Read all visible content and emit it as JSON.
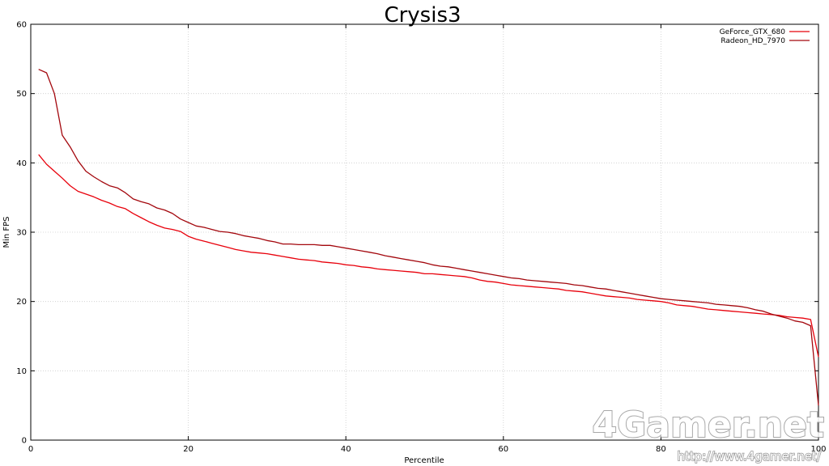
{
  "chart_data": {
    "type": "line",
    "title": "Crysis3",
    "xlabel": "Percentile",
    "ylabel": "Min FPS",
    "xlim": [
      0,
      100
    ],
    "ylim": [
      0,
      60
    ],
    "xticks": [
      0,
      20,
      40,
      60,
      80,
      100
    ],
    "yticks": [
      0,
      10,
      20,
      30,
      40,
      50,
      60
    ],
    "grid": true,
    "legend_position": "top-right",
    "series": [
      {
        "name": "GeForce_GTX_680",
        "color": "#e8000b",
        "x": [
          1,
          2,
          3,
          4,
          5,
          6,
          7,
          8,
          9,
          10,
          11,
          12,
          13,
          14,
          15,
          16,
          17,
          18,
          19,
          20,
          21,
          22,
          23,
          24,
          25,
          26,
          27,
          28,
          29,
          30,
          31,
          32,
          33,
          34,
          35,
          36,
          37,
          38,
          39,
          40,
          41,
          42,
          43,
          44,
          45,
          46,
          47,
          48,
          49,
          50,
          51,
          52,
          53,
          54,
          55,
          56,
          57,
          58,
          59,
          60,
          61,
          62,
          63,
          64,
          65,
          66,
          67,
          68,
          69,
          70,
          71,
          72,
          73,
          74,
          75,
          76,
          77,
          78,
          79,
          80,
          81,
          82,
          83,
          84,
          85,
          86,
          87,
          88,
          89,
          90,
          91,
          92,
          93,
          94,
          95,
          96,
          97,
          98,
          99,
          100
        ],
        "values": [
          41.2,
          39.8,
          38.8,
          37.8,
          36.7,
          35.9,
          35.5,
          35.1,
          34.6,
          34.2,
          33.7,
          33.4,
          32.7,
          32.1,
          31.5,
          31.0,
          30.6,
          30.4,
          30.1,
          29.4,
          29.0,
          28.7,
          28.4,
          28.1,
          27.8,
          27.5,
          27.3,
          27.1,
          27.0,
          26.9,
          26.7,
          26.5,
          26.3,
          26.1,
          26.0,
          25.9,
          25.7,
          25.6,
          25.5,
          25.3,
          25.2,
          25.0,
          24.9,
          24.7,
          24.6,
          24.5,
          24.4,
          24.3,
          24.2,
          24.0,
          24.0,
          23.9,
          23.8,
          23.7,
          23.6,
          23.4,
          23.1,
          22.9,
          22.8,
          22.6,
          22.4,
          22.3,
          22.2,
          22.1,
          22.0,
          21.9,
          21.8,
          21.6,
          21.5,
          21.4,
          21.2,
          21.0,
          20.8,
          20.7,
          20.6,
          20.5,
          20.3,
          20.2,
          20.1,
          20.0,
          19.8,
          19.5,
          19.4,
          19.3,
          19.1,
          18.9,
          18.8,
          18.7,
          18.6,
          18.5,
          18.4,
          18.3,
          18.2,
          18.1,
          18.0,
          17.8,
          17.7,
          17.6,
          17.4,
          12.0
        ]
      },
      {
        "name": "Radeon_HD_7970",
        "color": "#a3070d",
        "x": [
          1,
          2,
          3,
          4,
          5,
          6,
          7,
          8,
          9,
          10,
          11,
          12,
          13,
          14,
          15,
          16,
          17,
          18,
          19,
          20,
          21,
          22,
          23,
          24,
          25,
          26,
          27,
          28,
          29,
          30,
          31,
          32,
          33,
          34,
          35,
          36,
          37,
          38,
          39,
          40,
          41,
          42,
          43,
          44,
          45,
          46,
          47,
          48,
          49,
          50,
          51,
          52,
          53,
          54,
          55,
          56,
          57,
          58,
          59,
          60,
          61,
          62,
          63,
          64,
          65,
          66,
          67,
          68,
          69,
          70,
          71,
          72,
          73,
          74,
          75,
          76,
          77,
          78,
          79,
          80,
          81,
          82,
          83,
          84,
          85,
          86,
          87,
          88,
          89,
          90,
          91,
          92,
          93,
          94,
          95,
          96,
          97,
          98,
          99,
          100
        ],
        "values": [
          53.5,
          53.0,
          50.0,
          44.0,
          42.3,
          40.3,
          38.8,
          38.0,
          37.3,
          36.7,
          36.4,
          35.7,
          34.8,
          34.4,
          34.1,
          33.5,
          33.2,
          32.7,
          31.9,
          31.4,
          30.9,
          30.7,
          30.4,
          30.1,
          30.0,
          29.8,
          29.5,
          29.3,
          29.1,
          28.8,
          28.6,
          28.3,
          28.3,
          28.2,
          28.2,
          28.2,
          28.1,
          28.1,
          27.9,
          27.7,
          27.5,
          27.3,
          27.1,
          26.9,
          26.6,
          26.4,
          26.2,
          26.0,
          25.8,
          25.6,
          25.3,
          25.1,
          25.0,
          24.8,
          24.6,
          24.4,
          24.2,
          24.0,
          23.8,
          23.6,
          23.4,
          23.3,
          23.1,
          23.0,
          22.9,
          22.8,
          22.7,
          22.6,
          22.4,
          22.3,
          22.1,
          21.9,
          21.8,
          21.6,
          21.4,
          21.2,
          21.0,
          20.8,
          20.6,
          20.4,
          20.3,
          20.2,
          20.1,
          20.0,
          19.9,
          19.8,
          19.6,
          19.5,
          19.4,
          19.3,
          19.1,
          18.8,
          18.6,
          18.2,
          17.9,
          17.6,
          17.2,
          17.0,
          16.5,
          5.0
        ]
      }
    ]
  },
  "watermark": {
    "logo_text": "4Gamer.net",
    "url": "http://www.4gamer.net/"
  }
}
